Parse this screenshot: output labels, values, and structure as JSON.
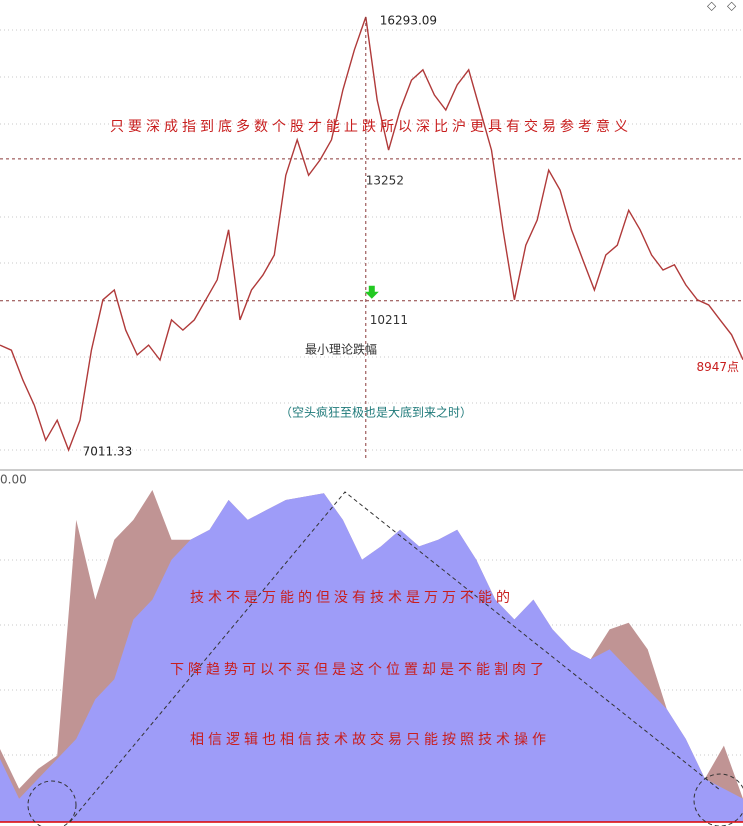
{
  "chart_data": {
    "type": "line",
    "ylim": [
      6582,
      16657
    ],
    "series": [
      {
        "color": "#b03a3a",
        "values": [
          9260,
          9150,
          8510,
          7970,
          7220,
          7650,
          7011.33,
          7650,
          9150,
          10230,
          10440,
          9580,
          9050,
          9260,
          8940,
          9800,
          9580,
          9800,
          10230,
          10660,
          11730,
          9800,
          10440,
          10760,
          11190,
          12900,
          13660,
          12900,
          13230,
          13660,
          14730,
          15590,
          16293.09,
          14510,
          13440,
          14300,
          14940,
          15160,
          14620,
          14300,
          14840,
          15160,
          14300,
          13440,
          11730,
          10230,
          11400,
          11940,
          13010,
          12580,
          11730,
          11080,
          10440,
          11190,
          11400,
          12150,
          11730,
          11190,
          10870,
          10980,
          10550,
          10230,
          10120,
          9800,
          9480,
          8947
        ]
      }
    ],
    "end_label": "8947点",
    "levels": [
      13252,
      10211
    ],
    "annotations": [
      "只要深成指到底多数个股才能止跌所以深比沪更具有交易参考意义",
      "最小理论跌幅",
      "（空头疯狂至极也是大底到来之时）"
    ],
    "lower_panel": {
      "label": "0.00",
      "ylim": [
        0,
        100
      ],
      "series": [
        {
          "color": "#c09494",
          "values": [
            22,
            10,
            16,
            20,
            91,
            67,
            85,
            91,
            100,
            85,
            85,
            88,
            97,
            91,
            94,
            97,
            98,
            99,
            91,
            79,
            83,
            88,
            83,
            85,
            88,
            79,
            67,
            61,
            67,
            58,
            52,
            49,
            58,
            60,
            52,
            34,
            25,
            13,
            23,
            7
          ]
        },
        {
          "color": "#9e9cf8",
          "values": [
            19,
            7,
            13,
            19,
            25,
            37,
            43,
            61,
            67,
            79,
            85,
            88,
            97,
            91,
            94,
            97,
            98,
            99,
            91,
            79,
            83,
            88,
            83,
            85,
            88,
            79,
            67,
            61,
            67,
            58,
            52,
            49,
            52,
            46,
            40,
            34,
            25,
            13,
            10,
            7
          ]
        }
      ],
      "annotations": [
        "技术不是万能的但没有技术是万万不能的",
        "下降趋势可以不买但是这个位置却是不能割肉了",
        "相信逻辑也相信技术故交易只能按照技术操作"
      ]
    }
  }
}
